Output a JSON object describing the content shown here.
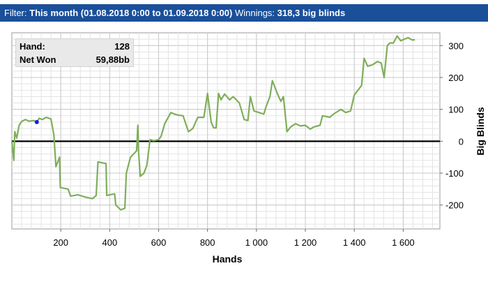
{
  "header": {
    "filter_label": "Filter:",
    "filter_value": "This month (01.08.2018 0:00 to 01.09.2018 0:00)",
    "winnings_label": "Winnings:",
    "winnings_value": "318,3 big blinds"
  },
  "infobox": {
    "hand_label": "Hand:",
    "hand_value": "128",
    "net_label": "Net Won",
    "net_value": "59,88bb"
  },
  "colors": {
    "header_bg": "#1a4f9a",
    "line": "#7fae5a",
    "zero_line": "#000000",
    "marker": "#1a1aee",
    "grid": "#e3e3e3"
  },
  "chart_data": {
    "type": "line",
    "xlabel": "Hands",
    "ylabel": "Big Blinds",
    "xlim": [
      0,
      1750
    ],
    "ylim": [
      -275,
      340
    ],
    "x_ticks": [
      200,
      400,
      600,
      800,
      1000,
      1200,
      1400,
      1600
    ],
    "x_tick_labels": [
      "200",
      "400",
      "600",
      "800",
      "1 000",
      "1 200",
      "1 400",
      "1 600"
    ],
    "y_ticks": [
      300,
      200,
      100,
      0,
      -100,
      -200
    ],
    "y_tick_labels": [
      "300",
      "200",
      "100",
      "0",
      "-100",
      "-200"
    ],
    "grid": true,
    "zero_line": true,
    "marker": {
      "x": 102,
      "y": 60
    },
    "series": [
      {
        "values": [
          [
            0,
            0
          ],
          [
            8,
            -60
          ],
          [
            12,
            30
          ],
          [
            20,
            10
          ],
          [
            30,
            50
          ],
          [
            40,
            62
          ],
          [
            55,
            68
          ],
          [
            70,
            63
          ],
          [
            90,
            65
          ],
          [
            102,
            60
          ],
          [
            112,
            72
          ],
          [
            125,
            68
          ],
          [
            140,
            75
          ],
          [
            160,
            70
          ],
          [
            172,
            20
          ],
          [
            180,
            -80
          ],
          [
            195,
            -50
          ],
          [
            198,
            -145
          ],
          [
            230,
            -150
          ],
          [
            240,
            -172
          ],
          [
            270,
            -168
          ],
          [
            300,
            -175
          ],
          [
            330,
            -180
          ],
          [
            345,
            -170
          ],
          [
            352,
            -65
          ],
          [
            385,
            -70
          ],
          [
            388,
            -170
          ],
          [
            420,
            -165
          ],
          [
            425,
            -200
          ],
          [
            445,
            -215
          ],
          [
            462,
            -210
          ],
          [
            468,
            -100
          ],
          [
            485,
            -50
          ],
          [
            510,
            -30
          ],
          [
            512,
            -5
          ],
          [
            515,
            50
          ],
          [
            518,
            -30
          ],
          [
            525,
            -110
          ],
          [
            540,
            -100
          ],
          [
            552,
            -75
          ],
          [
            565,
            5
          ],
          [
            580,
            2
          ],
          [
            600,
            5
          ],
          [
            610,
            15
          ],
          [
            625,
            55
          ],
          [
            650,
            90
          ],
          [
            665,
            85
          ],
          [
            680,
            82
          ],
          [
            700,
            80
          ],
          [
            722,
            30
          ],
          [
            740,
            40
          ],
          [
            760,
            75
          ],
          [
            785,
            75
          ],
          [
            800,
            150
          ],
          [
            805,
            120
          ],
          [
            815,
            60
          ],
          [
            825,
            42
          ],
          [
            835,
            42
          ],
          [
            845,
            150
          ],
          [
            855,
            130
          ],
          [
            870,
            148
          ],
          [
            890,
            130
          ],
          [
            905,
            140
          ],
          [
            930,
            120
          ],
          [
            950,
            68
          ],
          [
            965,
            65
          ],
          [
            975,
            140
          ],
          [
            990,
            95
          ],
          [
            1010,
            90
          ],
          [
            1030,
            85
          ],
          [
            1040,
            110
          ],
          [
            1055,
            140
          ],
          [
            1065,
            190
          ],
          [
            1085,
            150
          ],
          [
            1100,
            125
          ],
          [
            1110,
            140
          ],
          [
            1125,
            30
          ],
          [
            1140,
            45
          ],
          [
            1160,
            55
          ],
          [
            1180,
            48
          ],
          [
            1200,
            50
          ],
          [
            1220,
            38
          ],
          [
            1235,
            45
          ],
          [
            1260,
            50
          ],
          [
            1270,
            80
          ],
          [
            1300,
            75
          ],
          [
            1315,
            85
          ],
          [
            1345,
            100
          ],
          [
            1365,
            90
          ],
          [
            1385,
            95
          ],
          [
            1400,
            145
          ],
          [
            1415,
            160
          ],
          [
            1430,
            175
          ],
          [
            1440,
            260
          ],
          [
            1455,
            235
          ],
          [
            1475,
            240
          ],
          [
            1495,
            250
          ],
          [
            1510,
            245
          ],
          [
            1522,
            200
          ],
          [
            1535,
            300
          ],
          [
            1545,
            308
          ],
          [
            1560,
            308
          ],
          [
            1575,
            330
          ],
          [
            1590,
            315
          ],
          [
            1605,
            320
          ],
          [
            1620,
            325
          ],
          [
            1635,
            318
          ],
          [
            1648,
            318
          ]
        ]
      }
    ]
  }
}
